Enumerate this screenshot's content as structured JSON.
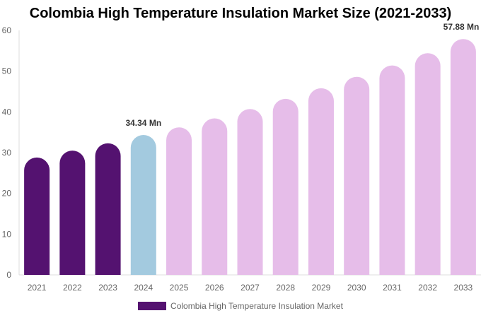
{
  "chart_data": {
    "type": "bar",
    "title": "Colombia High Temperature Insulation Market Size (2021-2033)",
    "categories": [
      "2021",
      "2022",
      "2023",
      "2024",
      "2025",
      "2026",
      "2027",
      "2028",
      "2029",
      "2030",
      "2031",
      "2032",
      "2033"
    ],
    "series": [
      {
        "name": "Colombia High Temperature Insulation Market",
        "values": [
          28.8,
          30.5,
          32.3,
          34.34,
          36.2,
          38.4,
          40.7,
          43.2,
          45.8,
          48.6,
          51.4,
          54.4,
          57.88
        ]
      }
    ],
    "data_labels": [
      {
        "category": "2024",
        "text": "34.34 Mn"
      },
      {
        "category": "2033",
        "text": "57.88 Mn"
      }
    ],
    "ylim": [
      0,
      60
    ],
    "yticks": [
      0,
      10,
      20,
      30,
      40,
      50,
      60
    ],
    "xlabel": "",
    "ylabel": "",
    "grid": false,
    "legend": "bottom",
    "colors": {
      "historical": "#541270",
      "current": "#a3cadf",
      "forecast": "#e6bde9",
      "legend": "#541270"
    }
  }
}
